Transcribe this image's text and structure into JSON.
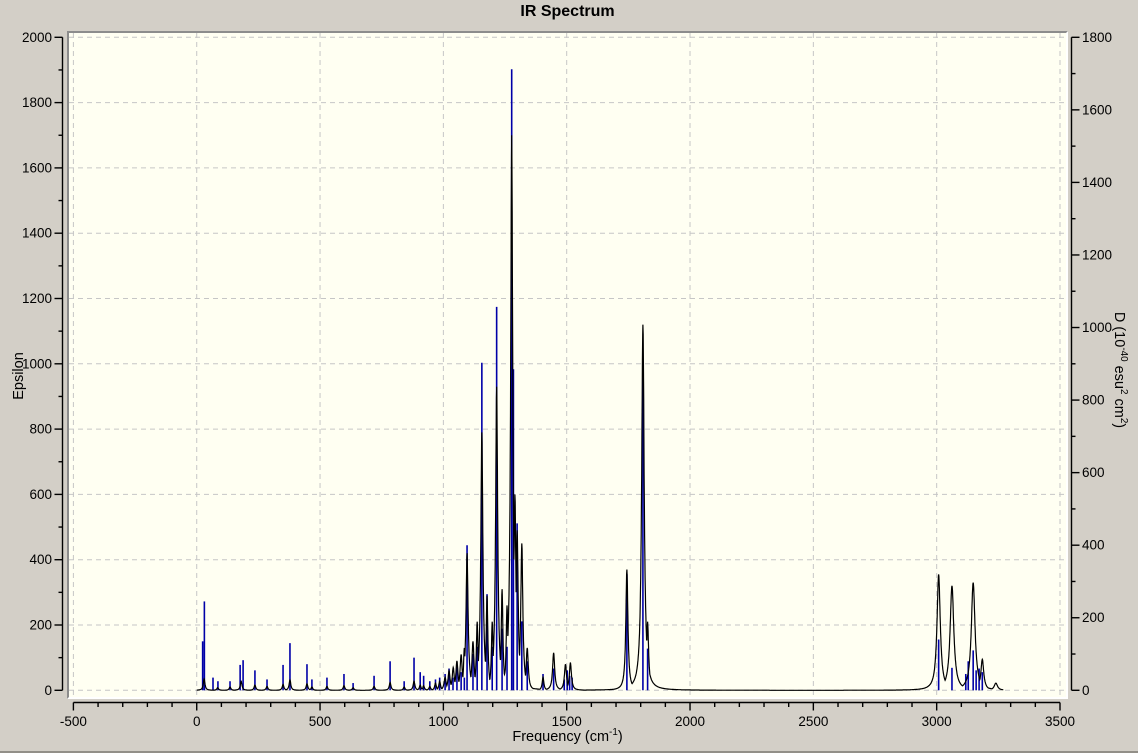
{
  "window": {
    "background_color": "#d3cfc7",
    "plot_background_color": "#fffff2"
  },
  "chart": {
    "title": "IR Spectrum",
    "x_axis": {
      "title_main": "Frequency (cm",
      "title_sup": "-1",
      "title_end": ")",
      "min": -500,
      "max": 3500,
      "major_tick_step": 500,
      "minor_tick_step": 100,
      "tick_labels": [
        "-500",
        "0",
        "500",
        "1000",
        "1500",
        "2000",
        "2500",
        "3000",
        "3500"
      ]
    },
    "y_axis_left": {
      "title": "Epsilon",
      "min": 0,
      "max": 2000,
      "major_tick_step": 200,
      "minor_tick_step": 100,
      "tick_labels": [
        "0",
        "200",
        "400",
        "600",
        "800",
        "1000",
        "1200",
        "1400",
        "1600",
        "1800",
        "2000"
      ]
    },
    "y_axis_right": {
      "title_p1": "D (10",
      "title_sup1": "-40",
      "title_p2": " esu",
      "title_sup2": "2",
      "title_p3": " cm",
      "title_sup3": "2",
      "title_end": ")",
      "min": 0,
      "max": 1800,
      "major_tick_step": 200,
      "minor_tick_step": 100,
      "tick_labels": [
        "0",
        "200",
        "400",
        "600",
        "800",
        "1000",
        "1200",
        "1400",
        "1600",
        "1800"
      ]
    },
    "colors": {
      "curve": "#000000",
      "sticks": "#0000a8",
      "grid": "#c6c6c6",
      "axis": "#000000"
    }
  },
  "chart_data": {
    "type": "line",
    "title": "IR Spectrum",
    "xlabel": "Frequency (cm-1)",
    "ylabel_left": "Epsilon",
    "ylabel_right": "D (10-40 esu2 cm2)",
    "xlim": [
      -500,
      3500
    ],
    "ylim_left": [
      0,
      2000
    ],
    "ylim_right": [
      0,
      1800
    ],
    "grid": "dashed, at every major tick",
    "curve_sample_range": [
      0,
      3270
    ],
    "series": [
      {
        "name": "epsilon-curve",
        "type": "line",
        "axis": "left",
        "color": "#000000",
        "note": "Lorentzian-broadened IR absorption envelope; peaks given as [frequency_cm-1, epsilon_height, hwhm_cm-1]",
        "peaks": [
          [
            30,
            35,
            4
          ],
          [
            85,
            8,
            4
          ],
          [
            135,
            10,
            4
          ],
          [
            180,
            28,
            4
          ],
          [
            236,
            16,
            4
          ],
          [
            285,
            12,
            4
          ],
          [
            350,
            18,
            4
          ],
          [
            378,
            32,
            4
          ],
          [
            447,
            20,
            4
          ],
          [
            467,
            10,
            4
          ],
          [
            528,
            12,
            4
          ],
          [
            597,
            14,
            4
          ],
          [
            634,
            8,
            4
          ],
          [
            719,
            12,
            4
          ],
          [
            784,
            24,
            4
          ],
          [
            841,
            10,
            4
          ],
          [
            881,
            28,
            4
          ],
          [
            906,
            16,
            4
          ],
          [
            920,
            14,
            4
          ],
          [
            945,
            12,
            4
          ],
          [
            968,
            22,
            4
          ],
          [
            985,
            28,
            4
          ],
          [
            1007,
            40,
            5
          ],
          [
            1023,
            60,
            5
          ],
          [
            1040,
            70,
            5
          ],
          [
            1055,
            90,
            5
          ],
          [
            1072,
            110,
            5
          ],
          [
            1085,
            130,
            4
          ],
          [
            1096,
            420,
            5
          ],
          [
            1120,
            150,
            5
          ],
          [
            1137,
            210,
            4
          ],
          [
            1156,
            790,
            5
          ],
          [
            1177,
            290,
            4
          ],
          [
            1198,
            210,
            4
          ],
          [
            1216,
            930,
            5
          ],
          [
            1238,
            310,
            4
          ],
          [
            1258,
            260,
            4
          ],
          [
            1277,
            1700,
            5
          ],
          [
            1290,
            600,
            5
          ],
          [
            1299,
            490,
            5
          ],
          [
            1318,
            450,
            5
          ],
          [
            1340,
            130,
            5
          ],
          [
            1404,
            40,
            4
          ],
          [
            1447,
            115,
            5
          ],
          [
            1495,
            80,
            5
          ],
          [
            1515,
            85,
            5
          ],
          [
            1744,
            370,
            5
          ],
          [
            1809,
            1120,
            6
          ],
          [
            1828,
            210,
            5
          ],
          [
            3008,
            355,
            8
          ],
          [
            3062,
            320,
            9
          ],
          [
            3148,
            330,
            9
          ],
          [
            3185,
            95,
            7
          ],
          [
            3240,
            22,
            8
          ]
        ]
      },
      {
        "name": "dipole-strength-sticks",
        "type": "stick",
        "axis": "right",
        "color": "#0000a8",
        "note": "vertical impulse lines; points given as [frequency_cm-1, D_value]",
        "points": [
          [
            24,
            135
          ],
          [
            31,
            245
          ],
          [
            66,
            35
          ],
          [
            86,
            25
          ],
          [
            135,
            25
          ],
          [
            176,
            70
          ],
          [
            188,
            83
          ],
          [
            236,
            55
          ],
          [
            285,
            30
          ],
          [
            350,
            70
          ],
          [
            378,
            130
          ],
          [
            447,
            72
          ],
          [
            467,
            30
          ],
          [
            528,
            35
          ],
          [
            597,
            45
          ],
          [
            634,
            20
          ],
          [
            719,
            40
          ],
          [
            784,
            80
          ],
          [
            841,
            25
          ],
          [
            881,
            90
          ],
          [
            906,
            50
          ],
          [
            920,
            40
          ],
          [
            945,
            25
          ],
          [
            968,
            30
          ],
          [
            985,
            35
          ],
          [
            1007,
            45
          ],
          [
            1023,
            60
          ],
          [
            1039,
            35
          ],
          [
            1055,
            65
          ],
          [
            1072,
            50
          ],
          [
            1085,
            35
          ],
          [
            1096,
            400
          ],
          [
            1120,
            100
          ],
          [
            1137,
            120
          ],
          [
            1156,
            903
          ],
          [
            1177,
            265
          ],
          [
            1198,
            120
          ],
          [
            1216,
            1057
          ],
          [
            1238,
            170
          ],
          [
            1258,
            120
          ],
          [
            1277,
            1712
          ],
          [
            1284,
            885
          ],
          [
            1299,
            460
          ],
          [
            1318,
            190
          ],
          [
            1340,
            80
          ],
          [
            1404,
            45
          ],
          [
            1447,
            60
          ],
          [
            1490,
            30
          ],
          [
            1502,
            55
          ],
          [
            1512,
            40
          ],
          [
            1522,
            35
          ],
          [
            1744,
            320
          ],
          [
            1809,
            880
          ],
          [
            1828,
            115
          ],
          [
            3008,
            140
          ],
          [
            3062,
            62
          ],
          [
            3118,
            45
          ],
          [
            3128,
            80
          ],
          [
            3148,
            110
          ],
          [
            3160,
            55
          ],
          [
            3172,
            60
          ],
          [
            3185,
            50
          ]
        ]
      }
    ]
  }
}
